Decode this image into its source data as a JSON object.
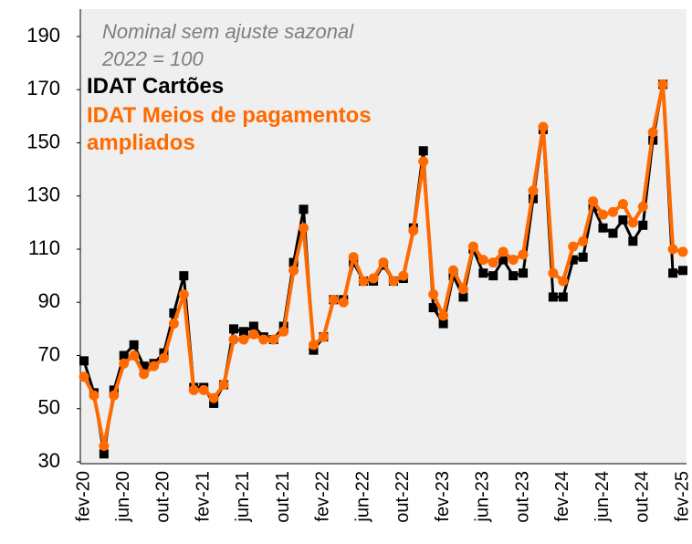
{
  "chart_data": {
    "type": "line",
    "annotations": [
      "Nominal sem ajuste sazonal",
      "2022 = 100"
    ],
    "categories": [
      "fev-20",
      null,
      null,
      null,
      "jun-20",
      null,
      null,
      null,
      "out-20",
      null,
      null,
      null,
      "fev-21",
      null,
      null,
      null,
      "jun-21",
      null,
      null,
      null,
      "out-21",
      null,
      null,
      null,
      "fev-22",
      null,
      null,
      null,
      "jun-22",
      null,
      null,
      null,
      "out-22",
      null,
      null,
      null,
      "fev-23",
      null,
      null,
      null,
      "jun-23",
      null,
      null,
      null,
      "out-23",
      null,
      null,
      null,
      "fev-24",
      null,
      null,
      null,
      "jun-24",
      null,
      null,
      null,
      "out-24",
      null,
      null,
      null,
      "fev-25"
    ],
    "series": [
      {
        "name": "IDAT Cartões",
        "color": "#000000",
        "marker": "square",
        "values": [
          68,
          56,
          33,
          57,
          70,
          74,
          66,
          67,
          71,
          86,
          100,
          58,
          58,
          52,
          59,
          80,
          79,
          81,
          77,
          76,
          81,
          105,
          125,
          72,
          77,
          91,
          91,
          105,
          98,
          98,
          104,
          98,
          99,
          118,
          147,
          88,
          82,
          100,
          92,
          110,
          101,
          100,
          106,
          100,
          101,
          129,
          155,
          92,
          92,
          106,
          107,
          126,
          118,
          116,
          121,
          113,
          119,
          151,
          172,
          101,
          102
        ]
      },
      {
        "name": "IDAT Meios de pagamentos ampliados",
        "color": "#ff6a00",
        "marker": "circle",
        "values": [
          62,
          55,
          36,
          55,
          67,
          70,
          63,
          66,
          69,
          82,
          93,
          57,
          57,
          54,
          59,
          76,
          76,
          78,
          76,
          76,
          79,
          102,
          118,
          74,
          77,
          91,
          90,
          107,
          98,
          99,
          105,
          98,
          100,
          117,
          143,
          93,
          85,
          102,
          95,
          111,
          106,
          105,
          109,
          106,
          108,
          132,
          156,
          101,
          98,
          111,
          113,
          128,
          123,
          124,
          127,
          120,
          126,
          154,
          172,
          110,
          109
        ]
      }
    ],
    "ylim": [
      30,
      190
    ],
    "yticks": [
      30,
      50,
      70,
      90,
      110,
      130,
      150,
      170,
      190
    ],
    "grid": false
  }
}
